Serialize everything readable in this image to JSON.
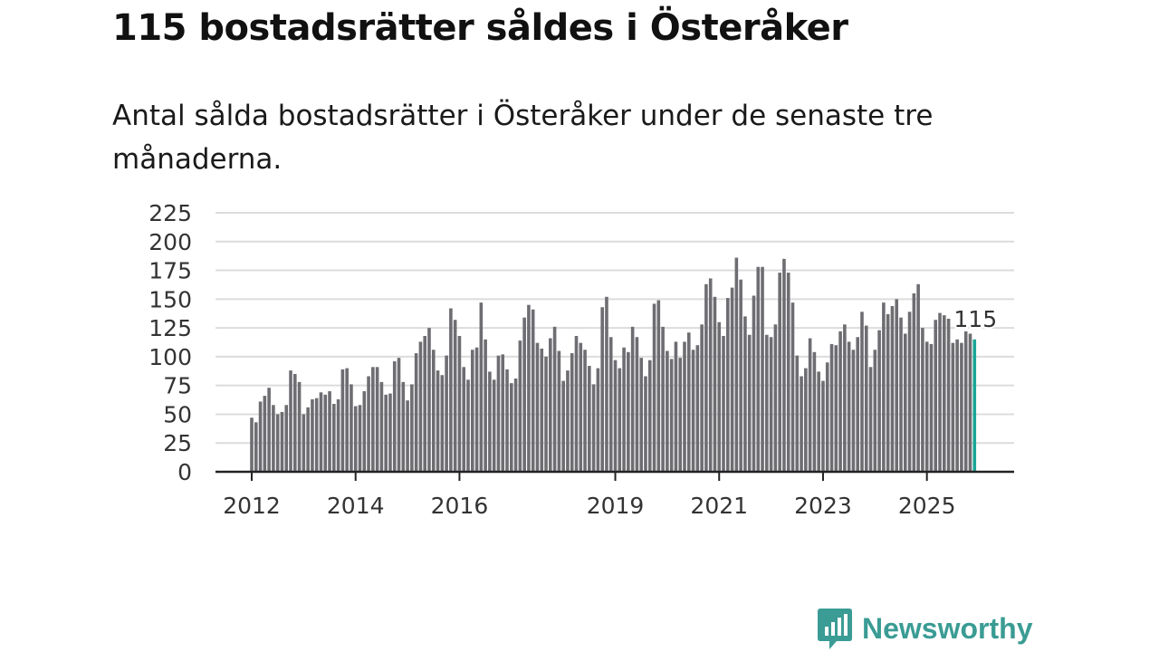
{
  "header": {
    "title": "115 bostadsrätter såldes i Österåker",
    "subtitle": "Antal sålda bostadsrätter i Österåker under de senaste tre månaderna."
  },
  "brand": {
    "name": "Newsworthy",
    "color": "#3a9c94"
  },
  "chart_data": {
    "type": "bar",
    "title": "115 bostadsrätter såldes i Österåker",
    "xlabel": "",
    "ylabel": "",
    "ylim": [
      0,
      225
    ],
    "yticks": [
      0,
      25,
      50,
      75,
      100,
      125,
      150,
      175,
      200,
      225
    ],
    "xticks": [
      {
        "label": "2012",
        "index": 0
      },
      {
        "label": "2014",
        "index": 24
      },
      {
        "label": "2016",
        "index": 48
      },
      {
        "label": "2019",
        "index": 84
      },
      {
        "label": "2021",
        "index": 108
      },
      {
        "label": "2023",
        "index": 132
      },
      {
        "label": "2025",
        "index": 156
      }
    ],
    "grid": true,
    "start": "2012-01",
    "frequency": "monthly",
    "bar_color": "#6e6d72",
    "highlight_color": "#1aa596",
    "last_label": "115",
    "values": [
      47,
      43,
      61,
      66,
      73,
      58,
      50,
      52,
      58,
      88,
      85,
      78,
      50,
      56,
      63,
      64,
      69,
      67,
      70,
      59,
      63,
      89,
      90,
      76,
      57,
      58,
      70,
      83,
      91,
      91,
      78,
      67,
      68,
      96,
      99,
      78,
      62,
      76,
      103,
      113,
      118,
      125,
      106,
      88,
      84,
      101,
      142,
      132,
      118,
      91,
      80,
      106,
      108,
      147,
      115,
      87,
      80,
      101,
      102,
      89,
      77,
      81,
      114,
      134,
      145,
      141,
      112,
      107,
      100,
      116,
      126,
      105,
      79,
      88,
      103,
      118,
      112,
      106,
      92,
      76,
      90,
      143,
      152,
      117,
      97,
      90,
      108,
      104,
      126,
      117,
      99,
      83,
      97,
      146,
      149,
      126,
      105,
      98,
      113,
      99,
      113,
      121,
      106,
      110,
      128,
      163,
      168,
      152,
      130,
      118,
      151,
      160,
      186,
      167,
      135,
      119,
      153,
      178,
      178,
      119,
      117,
      128,
      173,
      185,
      173,
      147,
      101,
      83,
      90,
      116,
      104,
      87,
      79,
      95,
      111,
      110,
      122,
      128,
      113,
      106,
      117,
      139,
      127,
      91,
      106,
      123,
      147,
      137,
      144,
      150,
      134,
      120,
      139,
      155,
      163,
      125,
      113,
      111,
      132,
      138,
      136,
      133,
      112,
      115,
      112,
      122,
      120,
      115
    ]
  }
}
